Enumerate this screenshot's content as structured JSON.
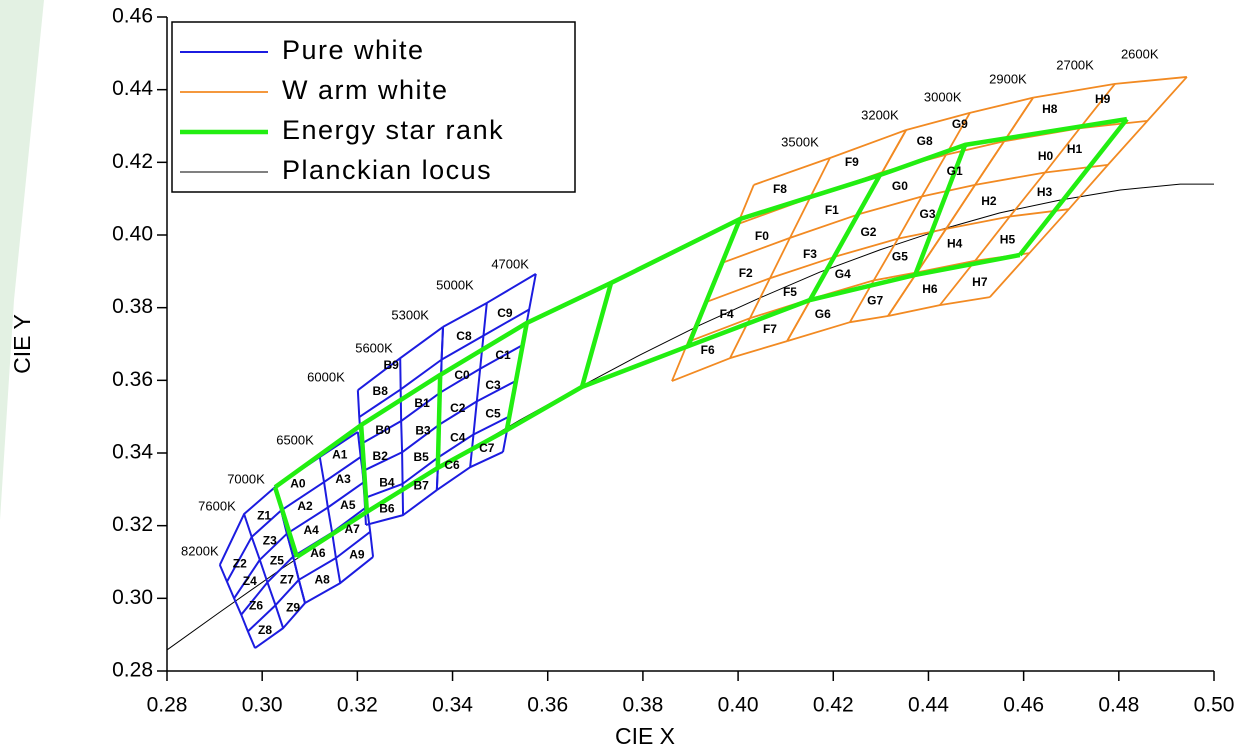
{
  "chart_data": {
    "type": "line",
    "xlabel": "CIE X",
    "ylabel": "CIE Y",
    "xlim": [
      0.28,
      0.5
    ],
    "ylim": [
      0.28,
      0.46
    ],
    "xticks": [
      0.28,
      {
        "value": 0.3,
        "label": "0.30"
      },
      0.32,
      0.34,
      0.36,
      0.38,
      {
        "value": 0.4,
        "label": "0.40"
      },
      0.42,
      0.44,
      0.46,
      0.48,
      {
        "value": 0.5,
        "label": "0.50"
      }
    ],
    "yticks": [
      0.28,
      {
        "value": 0.3,
        "label": "0.30"
      },
      0.32,
      0.34,
      0.36,
      0.38,
      {
        "value": 0.4,
        "label": "0.40"
      },
      0.42,
      0.44,
      0.46
    ],
    "legend": "upper left",
    "series": [
      {
        "name": "Pure white",
        "color": "#1c1ce0",
        "width": 2,
        "grids": [
          {
            "x": [
              [
                0.2911,
                0.2962,
                0.3027
              ],
              [
                0.2926,
                0.2978,
                0.304
              ],
              [
                0.2941,
                0.2995,
                0.3052
              ],
              [
                0.2956,
                0.3011,
                0.3065
              ],
              [
                0.297,
                0.3028,
                0.3077
              ],
              [
                0.2985,
                0.3044,
                0.309
              ]
            ],
            "y": [
              [
                0.3092,
                0.3232,
                0.3306
              ],
              [
                0.3046,
                0.3169,
                0.3242
              ],
              [
                0.3,
                0.3106,
                0.3178
              ],
              [
                0.2955,
                0.3044,
                0.3115
              ],
              [
                0.2909,
                0.2981,
                0.3051
              ],
              [
                0.2863,
                0.2918,
                0.2987
              ]
            ]
          },
          {
            "x": [
              [
                0.3027,
                0.3121,
                0.3201
              ],
              [
                0.304,
                0.313,
                0.3207
              ],
              [
                0.3052,
                0.3138,
                0.3214
              ],
              [
                0.3065,
                0.3147,
                0.322
              ],
              [
                0.3077,
                0.3155,
                0.3227
              ],
              [
                0.309,
                0.3164,
                0.3233
              ]
            ],
            "y": [
              [
                0.3306,
                0.3389,
                0.3458
              ],
              [
                0.3242,
                0.332,
                0.3389
              ],
              [
                0.3178,
                0.325,
                0.332
              ],
              [
                0.3115,
                0.3181,
                0.3252
              ],
              [
                0.3051,
                0.3111,
                0.3183
              ],
              [
                0.2987,
                0.3042,
                0.3114
              ]
            ]
          },
          {
            "x": [
              [
                0.3201,
                0.329,
                0.338
              ],
              [
                0.3204,
                0.3291,
                0.3377
              ],
              [
                0.3208,
                0.3292,
                0.3375
              ],
              [
                0.3211,
                0.3294,
                0.3372
              ],
              [
                0.3215,
                0.3295,
                0.337
              ],
              [
                0.3218,
                0.3296,
                0.3367
              ]
            ],
            "y": [
              [
                0.3573,
                0.3661,
                0.3747
              ],
              [
                0.3499,
                0.3575,
                0.3657
              ],
              [
                0.3425,
                0.3488,
                0.3567
              ],
              [
                0.335,
                0.3402,
                0.3478
              ],
              [
                0.3276,
                0.3315,
                0.3388
              ],
              [
                0.3202,
                0.3229,
                0.3298
              ]
            ]
          },
          {
            "x": [
              [
                0.338,
                0.3472,
                0.3575
              ],
              [
                0.3377,
                0.3465,
                0.3561
              ],
              [
                0.3375,
                0.3458,
                0.3547
              ],
              [
                0.3372,
                0.3451,
                0.3534
              ],
              [
                0.337,
                0.3444,
                0.352
              ],
              [
                0.3367,
                0.3437,
                0.3506
              ]
            ],
            "y": [
              [
                0.3747,
                0.3813,
                0.3893
              ],
              [
                0.3657,
                0.3723,
                0.3795
              ],
              [
                0.3567,
                0.3632,
                0.3697
              ],
              [
                0.3478,
                0.3542,
                0.3599
              ],
              [
                0.3388,
                0.3451,
                0.3501
              ],
              [
                0.3298,
                0.3361,
                0.3403
              ]
            ]
          }
        ]
      },
      {
        "name": "W arm white",
        "color": "#f28a22",
        "width": 1.8,
        "grids": [
          {
            "x": [
              [
                0.4033,
                0.4193,
                0.4353
              ],
              [
                0.3999,
                0.4151,
                0.4303
              ],
              [
                0.3964,
                0.4109,
                0.4253
              ],
              [
                0.393,
                0.4067,
                0.4203
              ],
              [
                0.3895,
                0.4025,
                0.4153
              ],
              [
                0.3861,
                0.3983,
                0.4103
              ]
            ],
            "y": [
              [
                0.4138,
                0.4212,
                0.4289
              ],
              [
                0.403,
                0.4102,
                0.4173
              ],
              [
                0.3922,
                0.3992,
                0.4057
              ],
              [
                0.3814,
                0.3881,
                0.394
              ],
              [
                0.3706,
                0.3771,
                0.3824
              ],
              [
                0.3598,
                0.3661,
                0.3708
              ]
            ]
          },
          {
            "x": [
              [
                0.4353,
                0.4487,
                0.462
              ],
              [
                0.4303,
                0.4437,
                0.4559
              ],
              [
                0.4253,
                0.4386,
                0.4498
              ],
              [
                0.4203,
                0.4336,
                0.4437
              ],
              [
                0.4153,
                0.4285,
                0.4376
              ],
              [
                0.4103,
                0.4235,
                0.4315
              ]
            ],
            "y": [
              [
                0.4289,
                0.4336,
                0.4378
              ],
              [
                0.4173,
                0.4221,
                0.4258
              ],
              [
                0.4057,
                0.4106,
                0.4138
              ],
              [
                0.394,
                0.399,
                0.4017
              ],
              [
                0.3824,
                0.3875,
                0.3897
              ],
              [
                0.3708,
                0.376,
                0.3777
              ]
            ]
          },
          {
            "x": [
              [
                0.462,
                0.4792,
                0.4943
              ],
              [
                0.4559,
                0.4718,
                0.486
              ],
              [
                0.4498,
                0.4645,
                0.4777
              ],
              [
                0.4437,
                0.4571,
                0.4695
              ],
              [
                0.4376,
                0.4498,
                0.4612
              ],
              [
                0.4315,
                0.4424,
                0.4529
              ]
            ],
            "y": [
              [
                0.4378,
                0.4416,
                0.4435
              ],
              [
                0.4258,
                0.4294,
                0.4314
              ],
              [
                0.4138,
                0.4172,
                0.4193
              ],
              [
                0.4017,
                0.4051,
                0.4071
              ],
              [
                0.3897,
                0.3929,
                0.395
              ],
              [
                0.3777,
                0.3807,
                0.3829
              ]
            ]
          }
        ]
      },
      {
        "name": "Energy star rank",
        "color": "#22ee11",
        "width": 4.5,
        "grids": [
          {
            "x": [
              [
                0.3027,
                0.3208,
                0.3374,
                0.3556,
                0.3733,
                0.4004,
                0.4298,
                0.4477,
                0.4817
              ],
              [
                0.3073,
                0.322,
                0.3369,
                0.3514,
                0.3672,
                0.3895,
                0.4151,
                0.4372,
                0.4592
              ]
            ],
            "y": [
              [
                0.3306,
                0.3477,
                0.3615,
                0.3758,
                0.3868,
                0.4044,
                0.4165,
                0.4248,
                0.4319
              ],
              [
                0.3114,
                0.3238,
                0.3359,
                0.3463,
                0.3582,
                0.3694,
                0.3821,
                0.389,
                0.3945
              ]
            ]
          }
        ]
      },
      {
        "name": "Planckian locus",
        "color": "#000000",
        "width": 1,
        "lines": [
          {
            "x": [
              0.28,
              0.2911,
              0.3037,
              0.3164,
              0.329,
              0.3416,
              0.3542,
              0.3668,
              0.3794,
              0.392,
              0.4046,
              0.4172,
              0.4298,
              0.4424,
              0.455,
              0.4676,
              0.4803,
              0.4929,
              0.5
            ],
            "y": [
              0.2858,
              0.2962,
              0.3078,
              0.3188,
              0.3298,
              0.3394,
              0.3491,
              0.3582,
              0.367,
              0.3752,
              0.3827,
              0.3898,
              0.3959,
              0.4014,
              0.4061,
              0.4096,
              0.4124,
              0.414,
              0.414
            ]
          }
        ]
      }
    ],
    "bin_labels": [
      {
        "text": "Z1",
        "x": 0.3004,
        "y": 0.3226
      },
      {
        "text": "Z2",
        "x": 0.2953,
        "y": 0.3094
      },
      {
        "text": "Z3",
        "x": 0.3016,
        "y": 0.3157
      },
      {
        "text": "Z4",
        "x": 0.2974,
        "y": 0.3045
      },
      {
        "text": "Z5",
        "x": 0.3031,
        "y": 0.3102
      },
      {
        "text": "Z6",
        "x": 0.2987,
        "y": 0.2978
      },
      {
        "text": "Z7",
        "x": 0.3052,
        "y": 0.305
      },
      {
        "text": "Z8",
        "x": 0.3006,
        "y": 0.291
      },
      {
        "text": "Z9",
        "x": 0.3065,
        "y": 0.2973
      },
      {
        "text": "A0",
        "x": 0.3075,
        "y": 0.3314
      },
      {
        "text": "A1",
        "x": 0.3163,
        "y": 0.3394
      },
      {
        "text": "A2",
        "x": 0.309,
        "y": 0.3252
      },
      {
        "text": "A3",
        "x": 0.317,
        "y": 0.3326
      },
      {
        "text": "A4",
        "x": 0.3103,
        "y": 0.3186
      },
      {
        "text": "A5",
        "x": 0.318,
        "y": 0.3254
      },
      {
        "text": "A6",
        "x": 0.3117,
        "y": 0.3122
      },
      {
        "text": "A7",
        "x": 0.3189,
        "y": 0.3188
      },
      {
        "text": "A8",
        "x": 0.3126,
        "y": 0.305
      },
      {
        "text": "A9",
        "x": 0.3199,
        "y": 0.3119
      },
      {
        "text": "B0",
        "x": 0.3254,
        "y": 0.3461
      },
      {
        "text": "B1",
        "x": 0.3336,
        "y": 0.3535
      },
      {
        "text": "B2",
        "x": 0.3248,
        "y": 0.339
      },
      {
        "text": "B3",
        "x": 0.3338,
        "y": 0.3459
      },
      {
        "text": "B4",
        "x": 0.3262,
        "y": 0.3316
      },
      {
        "text": "B5",
        "x": 0.3334,
        "y": 0.3387
      },
      {
        "text": "B6",
        "x": 0.3262,
        "y": 0.3245
      },
      {
        "text": "B7",
        "x": 0.3334,
        "y": 0.3308
      },
      {
        "text": "B8",
        "x": 0.3248,
        "y": 0.3569
      },
      {
        "text": "B9",
        "x": 0.3271,
        "y": 0.364
      },
      {
        "text": "C0",
        "x": 0.342,
        "y": 0.3613
      },
      {
        "text": "C1",
        "x": 0.3506,
        "y": 0.3668
      },
      {
        "text": "C2",
        "x": 0.3411,
        "y": 0.3522
      },
      {
        "text": "C3",
        "x": 0.3485,
        "y": 0.3585
      },
      {
        "text": "C4",
        "x": 0.3411,
        "y": 0.344
      },
      {
        "text": "C5",
        "x": 0.3485,
        "y": 0.3506
      },
      {
        "text": "C6",
        "x": 0.3399,
        "y": 0.3365
      },
      {
        "text": "C7",
        "x": 0.3472,
        "y": 0.3412
      },
      {
        "text": "C8",
        "x": 0.3424,
        "y": 0.372
      },
      {
        "text": "C9",
        "x": 0.351,
        "y": 0.3783
      },
      {
        "text": "F0",
        "x": 0.405,
        "y": 0.3995
      },
      {
        "text": "F1",
        "x": 0.4197,
        "y": 0.4066
      },
      {
        "text": "F2",
        "x": 0.4016,
        "y": 0.3893
      },
      {
        "text": "F3",
        "x": 0.4151,
        "y": 0.3945
      },
      {
        "text": "F4",
        "x": 0.3976,
        "y": 0.378
      },
      {
        "text": "F5",
        "x": 0.4109,
        "y": 0.3841
      },
      {
        "text": "F6",
        "x": 0.3936,
        "y": 0.3681
      },
      {
        "text": "F7",
        "x": 0.4067,
        "y": 0.3739
      },
      {
        "text": "F8",
        "x": 0.4088,
        "y": 0.4124
      },
      {
        "text": "F9",
        "x": 0.4239,
        "y": 0.4198
      },
      {
        "text": "G0",
        "x": 0.434,
        "y": 0.4132
      },
      {
        "text": "G1",
        "x": 0.4455,
        "y": 0.4174
      },
      {
        "text": "G2",
        "x": 0.4274,
        "y": 0.4006
      },
      {
        "text": "G3",
        "x": 0.4398,
        "y": 0.4055
      },
      {
        "text": "G4",
        "x": 0.422,
        "y": 0.389
      },
      {
        "text": "G5",
        "x": 0.434,
        "y": 0.3939
      },
      {
        "text": "G6",
        "x": 0.4178,
        "y": 0.378
      },
      {
        "text": "G7",
        "x": 0.4288,
        "y": 0.3818
      },
      {
        "text": "G8",
        "x": 0.4392,
        "y": 0.4256
      },
      {
        "text": "G9",
        "x": 0.4466,
        "y": 0.4303
      },
      {
        "text": "H0",
        "x": 0.4646,
        "y": 0.4215
      },
      {
        "text": "H1",
        "x": 0.4707,
        "y": 0.4234
      },
      {
        "text": "H2",
        "x": 0.4527,
        "y": 0.4091
      },
      {
        "text": "H3",
        "x": 0.4644,
        "y": 0.4116
      },
      {
        "text": "H4",
        "x": 0.4455,
        "y": 0.3975
      },
      {
        "text": "H5",
        "x": 0.4566,
        "y": 0.3986
      },
      {
        "text": "H6",
        "x": 0.4403,
        "y": 0.3849
      },
      {
        "text": "H7",
        "x": 0.4508,
        "y": 0.3868
      },
      {
        "text": "H8",
        "x": 0.4655,
        "y": 0.4344
      },
      {
        "text": "H9",
        "x": 0.4766,
        "y": 0.4372
      }
    ],
    "cct_labels": [
      {
        "text": "8200K",
        "x": 0.2869,
        "y": 0.3127
      },
      {
        "text": "7600K",
        "x": 0.2905,
        "y": 0.3251
      },
      {
        "text": "7000K",
        "x": 0.2966,
        "y": 0.3326
      },
      {
        "text": "6500K",
        "x": 0.3069,
        "y": 0.3433
      },
      {
        "text": "6000K",
        "x": 0.3134,
        "y": 0.3606
      },
      {
        "text": "5600K",
        "x": 0.3235,
        "y": 0.3686
      },
      {
        "text": "5300K",
        "x": 0.3311,
        "y": 0.3777
      },
      {
        "text": "5000K",
        "x": 0.3405,
        "y": 0.386
      },
      {
        "text": "4700K",
        "x": 0.3521,
        "y": 0.3917
      },
      {
        "text": "3500K",
        "x": 0.413,
        "y": 0.4253
      },
      {
        "text": "3200K",
        "x": 0.4298,
        "y": 0.4327
      },
      {
        "text": "3000K",
        "x": 0.443,
        "y": 0.4377
      },
      {
        "text": "2900K",
        "x": 0.4567,
        "y": 0.4427
      },
      {
        "text": "2700K",
        "x": 0.4708,
        "y": 0.4465
      },
      {
        "text": "2600K",
        "x": 0.4844,
        "y": 0.4495
      }
    ]
  }
}
